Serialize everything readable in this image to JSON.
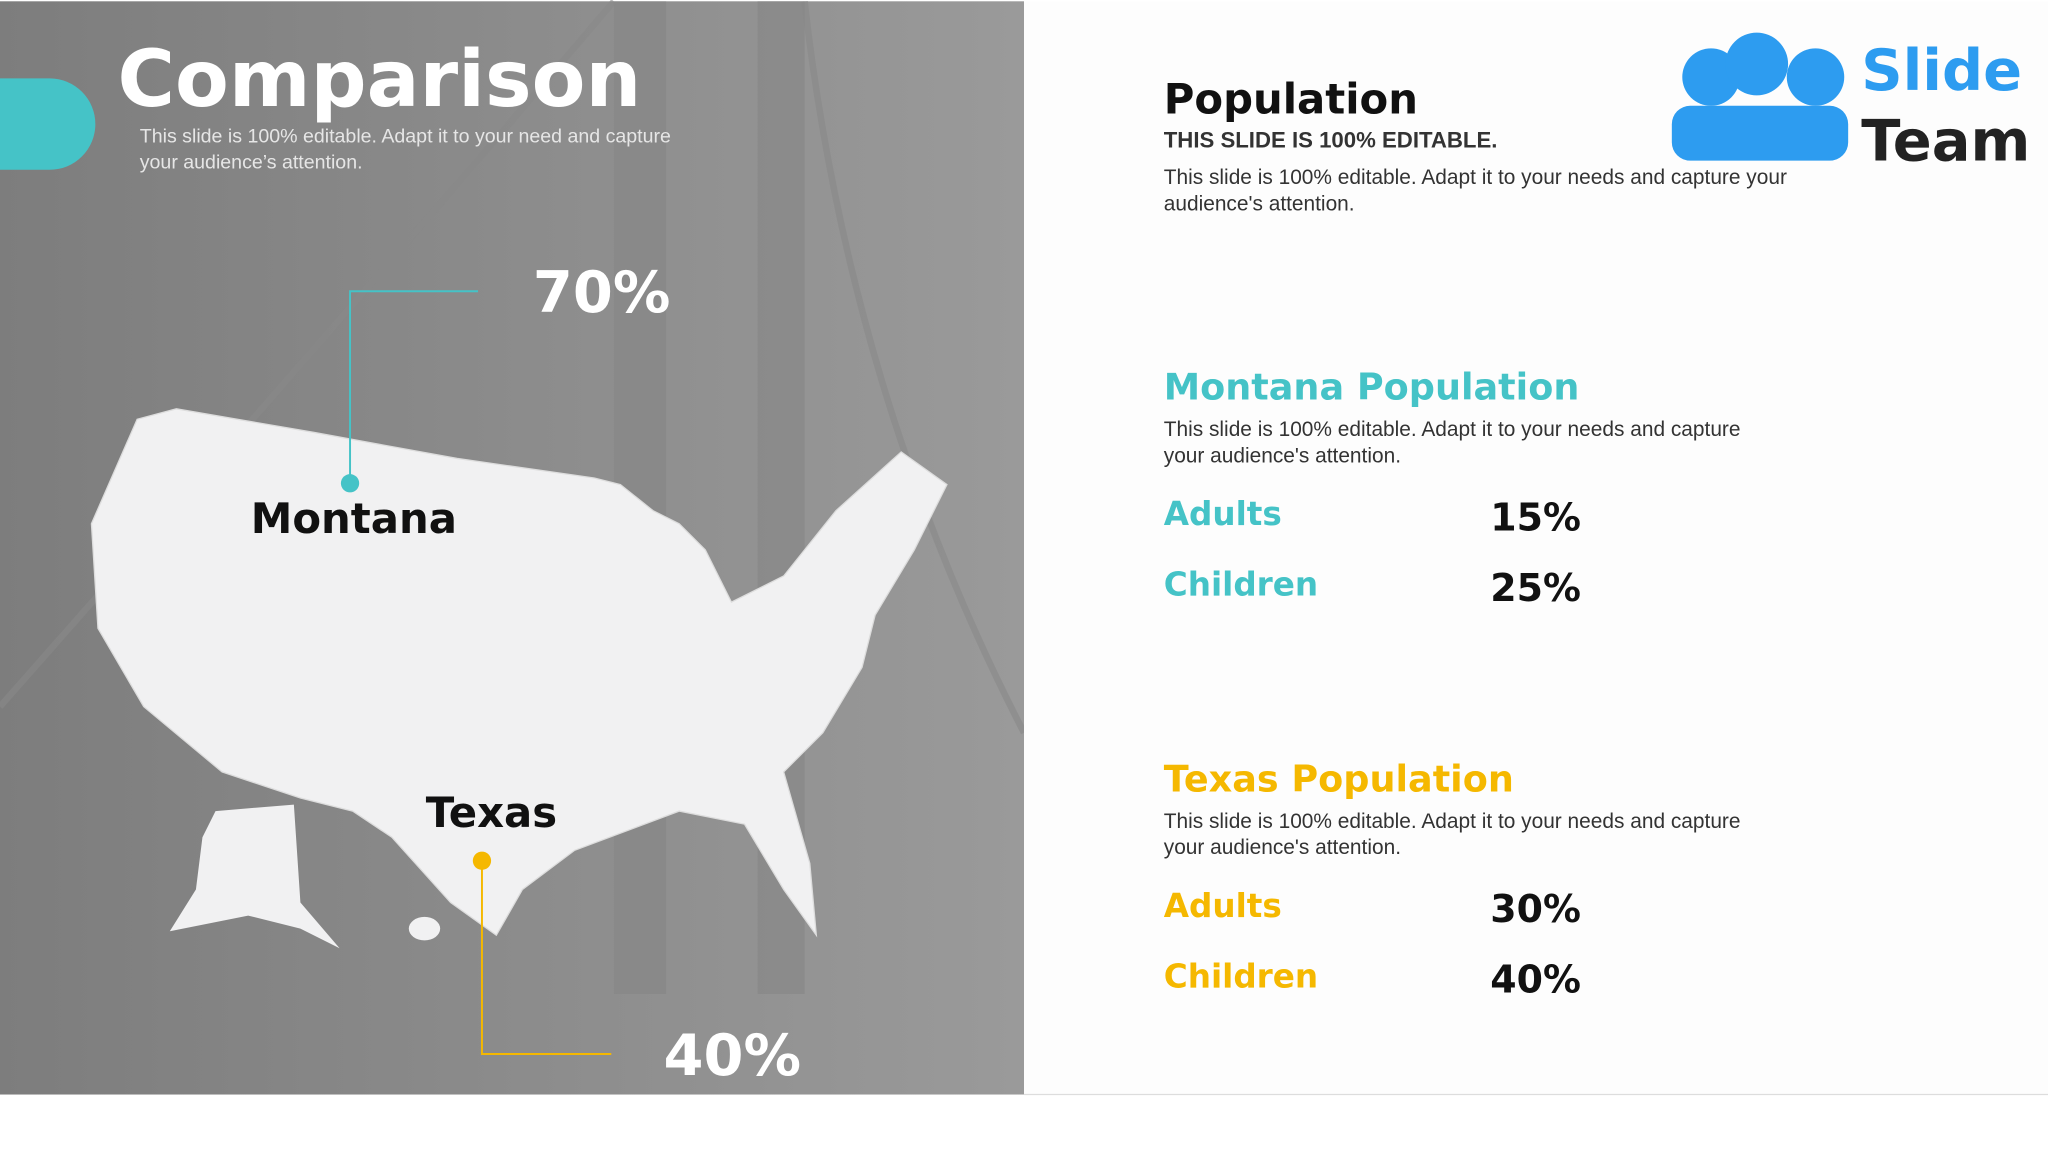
{
  "header": {
    "title": "Comparison",
    "subtitle_line1": "This slide is 100% editable. Adapt it to your need and capture",
    "subtitle_line2": "your audience’s attention."
  },
  "map": {
    "montana": {
      "label": "Montana",
      "value": "70%"
    },
    "texas": {
      "label": "Texas",
      "value": "40%"
    }
  },
  "logo": {
    "line1": "Slide",
    "line2": "Team"
  },
  "population": {
    "title": "Population",
    "subtitle": "THIS SLIDE IS 100% EDITABLE.",
    "text_line1": "This slide is 100% editable. Adapt it to your needs and capture your",
    "text_line2": "audience's attention."
  },
  "sections": [
    {
      "title": "Montana Population",
      "text_line1": "This slide is 100% editable. Adapt it to your needs and capture",
      "text_line2": "your audience's attention.",
      "rows": [
        [
          "Adults",
          "15%"
        ],
        [
          "Children",
          "25%"
        ]
      ]
    },
    {
      "title": "Texas Population",
      "text_line1": "This slide is 100% editable. Adapt it to your needs and capture",
      "text_line2": "your audience's attention.",
      "rows": [
        [
          "Adults",
          "30%"
        ],
        [
          "Children",
          "40%"
        ]
      ]
    }
  ]
}
